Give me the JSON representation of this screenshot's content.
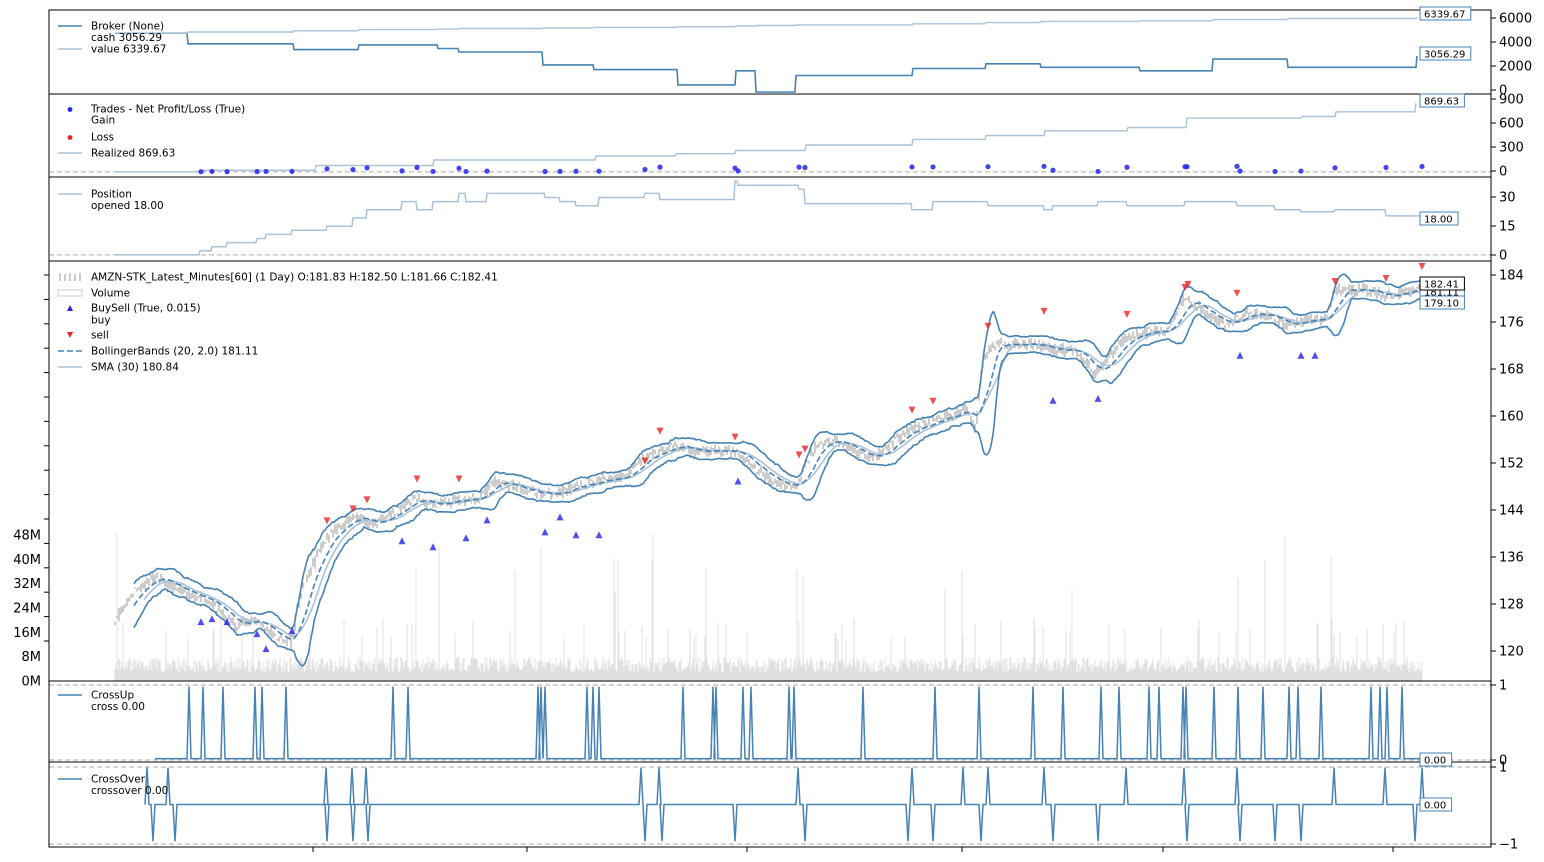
{
  "colors": {
    "dark": "#4682b4",
    "light": "#a9c2d9",
    "buy": "#2323ee",
    "sell": "#ee2323",
    "bar": "#9a9a9a",
    "volume": "#d9d9d9",
    "zero": "#aaaaaa"
  },
  "chart_data": [
    {
      "panel": "broker",
      "type": "line",
      "legend": [
        "Broker (None)",
        "cash 3056.29",
        "value 6339.67"
      ],
      "y_ticks": [
        "6000",
        "4000",
        "2000",
        "0"
      ],
      "ylim": [
        0,
        6800
      ],
      "x": [
        0,
        72,
        73,
        178,
        179,
        243,
        244,
        322,
        323,
        343,
        344,
        427,
        428,
        478,
        479,
        562,
        563,
        620,
        621,
        640,
        641,
        680,
        681,
        797,
        798,
        870,
        871,
        925,
        926,
        1024,
        1025,
        1097,
        1098,
        1172,
        1173,
        1301,
        1302
      ],
      "series": [
        {
          "name": "cash",
          "values": [
            5000,
            5000,
            4100,
            4100,
            3600,
            3600,
            4000,
            4000,
            3700,
            3700,
            3400,
            3400,
            2300,
            2300,
            1900,
            1900,
            600,
            600,
            1800,
            1800,
            0,
            0,
            1400,
            1400,
            2000,
            2000,
            2400,
            2400,
            2100,
            2100,
            1800,
            1800,
            2800,
            2800,
            2100,
            2100,
            3056.29
          ]
        },
        {
          "name": "value",
          "values": [
            5000,
            5000,
            5100,
            5100,
            5200,
            5200,
            5300,
            5300,
            5350,
            5350,
            5400,
            5400,
            5450,
            5450,
            5500,
            5500,
            5550,
            5550,
            5600,
            5600,
            5650,
            5650,
            5700,
            5700,
            5800,
            5800,
            5900,
            5900,
            6000,
            6000,
            6050,
            6050,
            6150,
            6150,
            6250,
            6250,
            6339.67
          ]
        }
      ],
      "last_labels": [
        "6339.67",
        "3056.29"
      ]
    },
    {
      "panel": "trades",
      "type": "scatter",
      "legend": [
        "Trades - Net Profit/Loss (True)",
        "Gain",
        "Loss",
        "Realized 869.63"
      ],
      "y_ticks": [
        "900",
        "600",
        "300",
        "0"
      ],
      "ylim": [
        -40,
        960
      ],
      "gain_points": [
        [
          86,
          2
        ],
        [
          97,
          5
        ],
        [
          112,
          3
        ],
        [
          142,
          3
        ],
        [
          151,
          5
        ],
        [
          177,
          6
        ],
        [
          212,
          38
        ],
        [
          238,
          28
        ],
        [
          252,
          50
        ],
        [
          287,
          12
        ],
        [
          302,
          55
        ],
        [
          318,
          5
        ],
        [
          344,
          45
        ],
        [
          351,
          5
        ],
        [
          372,
          9
        ],
        [
          430,
          4
        ],
        [
          445,
          6
        ],
        [
          461,
          7
        ],
        [
          484,
          8
        ],
        [
          530,
          30
        ],
        [
          545,
          60
        ],
        [
          620,
          48
        ],
        [
          623,
          12
        ],
        [
          684,
          60
        ],
        [
          690,
          55
        ],
        [
          797,
          62
        ],
        [
          818,
          62
        ],
        [
          873,
          65
        ],
        [
          929,
          70
        ],
        [
          938,
          20
        ],
        [
          983,
          5
        ],
        [
          1012,
          58
        ],
        [
          1070,
          65
        ],
        [
          1072,
          65
        ],
        [
          1122,
          70
        ],
        [
          1125,
          10
        ],
        [
          1160,
          5
        ],
        [
          1186,
          10
        ],
        [
          1220,
          50
        ],
        [
          1271,
          55
        ],
        [
          1307,
          68
        ]
      ],
      "realized": {
        "x": [
          0,
          84,
          85,
          200,
          201,
          318,
          319,
          480,
          481,
          560,
          561,
          620,
          621,
          690,
          691,
          797,
          798,
          870,
          871,
          929,
          930,
          1012,
          1013,
          1071,
          1072,
          1186,
          1187,
          1220,
          1221,
          1300,
          1301
        ],
        "values": [
          0,
          0,
          20,
          20,
          80,
          80,
          150,
          150,
          200,
          200,
          230,
          230,
          270,
          270,
          340,
          340,
          410,
          410,
          460,
          460,
          520,
          520,
          560,
          560,
          680,
          680,
          700,
          700,
          760,
          760,
          869.63
        ]
      },
      "last_labels": [
        "869.63"
      ]
    },
    {
      "panel": "position",
      "type": "line",
      "legend": [
        "Position",
        "opened 18.00"
      ],
      "y_ticks": [
        "30",
        "15",
        "0"
      ],
      "ylim": [
        -2,
        37
      ],
      "x": [
        0,
        84,
        85,
        96,
        97,
        111,
        112,
        141,
        142,
        150,
        151,
        176,
        177,
        211,
        212,
        237,
        238,
        251,
        252,
        286,
        287,
        301,
        302,
        317,
        318,
        343,
        344,
        350,
        351,
        371,
        372,
        429,
        430,
        444,
        445,
        460,
        461,
        483,
        484,
        529,
        530,
        544,
        545,
        619,
        620,
        622,
        623,
        683,
        684,
        689,
        690,
        796,
        797,
        817,
        818,
        872,
        873,
        928,
        929,
        937,
        938,
        982,
        983,
        1011,
        1012,
        1069,
        1070,
        1121,
        1122,
        1159,
        1160,
        1185,
        1186,
        1219,
        1220,
        1270,
        1271,
        1306,
        1307
      ],
      "values": [
        0,
        0,
        2,
        2,
        4,
        4,
        6,
        6,
        8,
        8,
        10,
        10,
        12,
        12,
        14,
        14,
        18,
        18,
        22,
        22,
        26,
        26,
        22,
        22,
        26,
        26,
        30,
        30,
        26,
        26,
        30,
        30,
        28,
        28,
        26,
        26,
        24,
        24,
        28,
        28,
        30,
        30,
        27,
        27,
        36,
        36,
        34,
        34,
        32,
        32,
        25,
        25,
        22,
        22,
        26,
        26,
        24,
        24,
        22,
        22,
        24,
        24,
        26,
        26,
        24,
        24,
        26,
        26,
        24,
        24,
        22,
        22,
        21,
        21,
        22,
        22,
        19,
        19,
        18
      ]
    },
    {
      "panel": "price",
      "type": "line",
      "legend": [
        "AMZN-STK_Latest_Minutes[60] (1 Day) O:181.83 H:182.50 L:181.66 C:182.41",
        "Volume",
        "BuySell (True, 0.015)",
        "buy",
        "sell",
        "BollingerBands (20, 2.0) 181.11",
        "SMA (30) 180.84"
      ],
      "y_ticks": [
        "184",
        "176",
        "168",
        "160",
        "152",
        "144",
        "136",
        "128",
        "120"
      ],
      "y_ticks_left": [
        "48M",
        "40M",
        "32M",
        "24M",
        "16M",
        "8M",
        "0M"
      ],
      "ylim": [
        116,
        185.5
      ],
      "close_anchors": [
        [
          0,
          126
        ],
        [
          20,
          131
        ],
        [
          40,
          133
        ],
        [
          60,
          131
        ],
        [
          80,
          130
        ],
        [
          100,
          128
        ],
        [
          120,
          125
        ],
        [
          140,
          126
        ],
        [
          160,
          123
        ],
        [
          175,
          122
        ],
        [
          185,
          130
        ],
        [
          205,
          138
        ],
        [
          220,
          141
        ],
        [
          240,
          143
        ],
        [
          260,
          142
        ],
        [
          280,
          144
        ],
        [
          300,
          146
        ],
        [
          320,
          145
        ],
        [
          340,
          146
        ],
        [
          360,
          146
        ],
        [
          380,
          149
        ],
        [
          400,
          148
        ],
        [
          420,
          147
        ],
        [
          440,
          147
        ],
        [
          460,
          148
        ],
        [
          480,
          149
        ],
        [
          510,
          150
        ],
        [
          530,
          153
        ],
        [
          560,
          155
        ],
        [
          580,
          154
        ],
        [
          600,
          154
        ],
        [
          620,
          154
        ],
        [
          640,
          151
        ],
        [
          660,
          149
        ],
        [
          680,
          148
        ],
        [
          700,
          155
        ],
        [
          720,
          156
        ],
        [
          740,
          154
        ],
        [
          760,
          153
        ],
        [
          780,
          156
        ],
        [
          800,
          158
        ],
        [
          820,
          159
        ],
        [
          850,
          161
        ],
        [
          860,
          158
        ],
        [
          868,
          170
        ],
        [
          880,
          172
        ],
        [
          900,
          172
        ],
        [
          920,
          172
        ],
        [
          940,
          171
        ],
        [
          960,
          171
        ],
        [
          980,
          167
        ],
        [
          990,
          169
        ],
        [
          1010,
          173
        ],
        [
          1030,
          174
        ],
        [
          1050,
          174
        ],
        [
          1070,
          180
        ],
        [
          1090,
          177
        ],
        [
          1110,
          175
        ],
        [
          1130,
          177
        ],
        [
          1150,
          177
        ],
        [
          1170,
          175
        ],
        [
          1190,
          176
        ],
        [
          1210,
          176
        ],
        [
          1220,
          181
        ],
        [
          1250,
          181
        ],
        [
          1270,
          180
        ],
        [
          1300,
          181
        ],
        [
          1307,
          182.41
        ]
      ],
      "buy_markers": [
        [
          86,
          125.5
        ],
        [
          97,
          126
        ],
        [
          112,
          125.5
        ],
        [
          142,
          123.5
        ],
        [
          151,
          121
        ],
        [
          177,
          124
        ],
        [
          287,
          139
        ],
        [
          318,
          138
        ],
        [
          351,
          139.5
        ],
        [
          372,
          142.5
        ],
        [
          430,
          140.5
        ],
        [
          445,
          143
        ],
        [
          461,
          140
        ],
        [
          484,
          140
        ],
        [
          623,
          149
        ],
        [
          938,
          162.5
        ],
        [
          983,
          162.8
        ],
        [
          1125,
          170
        ],
        [
          1186,
          170
        ],
        [
          1200,
          170
        ]
      ],
      "sell_markers": [
        [
          212,
          142.5
        ],
        [
          238,
          144.5
        ],
        [
          252,
          146
        ],
        [
          302,
          149.5
        ],
        [
          344,
          149.5
        ],
        [
          530,
          152.5
        ],
        [
          545,
          157.5
        ],
        [
          620,
          156.5
        ],
        [
          684,
          153.5
        ],
        [
          690,
          154.5
        ],
        [
          797,
          161
        ],
        [
          818,
          162.5
        ],
        [
          873,
          175
        ],
        [
          929,
          177.5
        ],
        [
          1012,
          177
        ],
        [
          1070,
          181.5
        ],
        [
          1073,
          182
        ],
        [
          1122,
          180.5
        ],
        [
          1220,
          182.5
        ],
        [
          1271,
          183
        ],
        [
          1307,
          185
        ]
      ],
      "last_labels": [
        "182.41",
        "181.11",
        "179.10"
      ]
    },
    {
      "panel": "crossup",
      "type": "line",
      "legend": [
        "CrossUp",
        "cross 0.00"
      ],
      "y_ticks": [
        "1",
        "0"
      ],
      "ylim": [
        -0.02,
        1.05
      ],
      "spikes": [
        74,
        88,
        108,
        140,
        147,
        171,
        278,
        293,
        423,
        426,
        430,
        472,
        478,
        484,
        568,
        598,
        601,
        628,
        636,
        674,
        679,
        748,
        820,
        864,
        918,
        948,
        986,
        1004,
        1034,
        1044,
        1068,
        1071,
        1099,
        1123,
        1148,
        1174,
        1183,
        1206,
        1256,
        1265,
        1272,
        1287
      ],
      "last_labels": [
        "0.00"
      ]
    },
    {
      "panel": "crossover",
      "type": "line",
      "legend": [
        "CrossOver",
        "crossover 0.00"
      ],
      "y_ticks": [
        "1",
        "−1"
      ],
      "ylim": [
        -1.1,
        1.1
      ],
      "up_spikes": [
        32,
        53,
        211,
        237,
        251,
        526,
        544,
        683,
        797,
        848,
        873,
        929,
        1011,
        1069,
        1122,
        1219,
        1270,
        1307
      ],
      "down_spikes": [
        38,
        60,
        212,
        238,
        253,
        530,
        547,
        620,
        690,
        793,
        818,
        866,
        938,
        983,
        1072,
        1125,
        1160,
        1186,
        1300
      ],
      "last_labels": [
        "0.00"
      ]
    }
  ]
}
